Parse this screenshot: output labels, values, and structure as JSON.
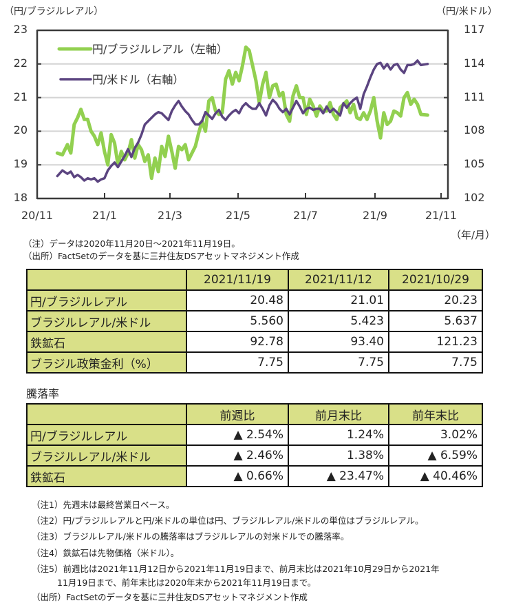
{
  "chart_data": {
    "type": "line",
    "left_axis_unit": "（円/ブラジルレアル）",
    "right_axis_unit": "（円/米ドル）",
    "x_unit": "（年/月）",
    "x_ticks": [
      "20/11",
      "21/1",
      "21/3",
      "21/5",
      "21/7",
      "21/9",
      "21/11"
    ],
    "y_left": {
      "range": [
        18,
        23
      ],
      "ticks": [
        "18",
        "19",
        "20",
        "21",
        "22",
        "23"
      ]
    },
    "y_right": {
      "range": [
        102,
        117
      ],
      "ticks": [
        "102",
        "105",
        "108",
        "111",
        "114",
        "117"
      ]
    },
    "grid": true,
    "legend": {
      "placement": "top-left",
      "entries": [
        "円/ブラジルレアル（左軸）",
        "円/米ドル（右軸）"
      ]
    },
    "x_domain_months": [
      0,
      12
    ],
    "series": [
      {
        "name": "円/ブラジルレアル（左軸）",
        "axis": "left",
        "color": "#92d050",
        "x": [
          0.6,
          0.75,
          0.9,
          1.0,
          1.1,
          1.2,
          1.3,
          1.4,
          1.5,
          1.6,
          1.7,
          1.8,
          1.9,
          2.0,
          2.1,
          2.2,
          2.3,
          2.4,
          2.5,
          2.6,
          2.7,
          2.8,
          2.9,
          3.0,
          3.1,
          3.2,
          3.3,
          3.4,
          3.5,
          3.6,
          3.7,
          3.8,
          3.9,
          4.0,
          4.1,
          4.2,
          4.3,
          4.4,
          4.5,
          4.6,
          4.7,
          4.8,
          4.9,
          5.0,
          5.1,
          5.2,
          5.3,
          5.4,
          5.5,
          5.6,
          5.7,
          5.8,
          5.9,
          6.0,
          6.1,
          6.2,
          6.3,
          6.4,
          6.5,
          6.6,
          6.7,
          6.8,
          6.9,
          7.0,
          7.1,
          7.2,
          7.3,
          7.4,
          7.5,
          7.6,
          7.7,
          7.8,
          7.9,
          8.0,
          8.1,
          8.2,
          8.3,
          8.4,
          8.5,
          8.6,
          8.7,
          8.8,
          8.9,
          9.0,
          9.1,
          9.2,
          9.3,
          9.4,
          9.5,
          9.6,
          9.7,
          9.8,
          9.9,
          10.0,
          10.1,
          10.2,
          10.3,
          10.4,
          10.5,
          10.6,
          10.7,
          10.8,
          10.9,
          11.0,
          11.1,
          11.2,
          11.3,
          11.4,
          11.6
        ],
        "values": [
          19.35,
          19.3,
          19.6,
          19.35,
          20.2,
          20.4,
          20.65,
          20.35,
          20.35,
          20.0,
          19.85,
          19.6,
          19.95,
          19.4,
          19.0,
          19.9,
          19.65,
          19.0,
          19.4,
          19.15,
          19.35,
          19.75,
          19.2,
          19.6,
          19.45,
          19.1,
          19.3,
          18.6,
          19.2,
          18.8,
          19.55,
          19.25,
          19.85,
          19.4,
          18.9,
          19.55,
          19.45,
          19.6,
          19.15,
          19.35,
          19.55,
          19.95,
          20.3,
          20.0,
          20.9,
          21.0,
          20.6,
          20.5,
          20.55,
          21.55,
          21.8,
          21.4,
          21.75,
          21.5,
          21.95,
          22.5,
          22.4,
          21.95,
          21.5,
          20.85,
          21.4,
          21.75,
          21.0,
          21.35,
          21.4,
          21.05,
          21.15,
          20.5,
          20.3,
          21.05,
          21.35,
          21.0,
          21.0,
          20.5,
          20.95,
          20.75,
          20.45,
          20.75,
          20.6,
          20.6,
          20.85,
          20.5,
          20.35,
          20.7,
          20.8,
          20.9,
          20.55,
          20.8,
          20.4,
          20.35,
          20.55,
          20.35,
          20.6,
          21.0,
          20.3,
          19.8,
          20.55,
          20.2,
          20.3,
          20.6,
          20.55,
          20.45,
          21.0,
          21.15,
          20.8,
          20.95,
          20.8,
          20.5,
          20.48
        ]
      },
      {
        "name": "円/米ドル（右軸）",
        "axis": "right",
        "color": "#5b4480",
        "x": [
          0.6,
          0.75,
          0.9,
          1.0,
          1.1,
          1.2,
          1.3,
          1.4,
          1.5,
          1.6,
          1.7,
          1.8,
          1.9,
          2.0,
          2.1,
          2.2,
          2.3,
          2.4,
          2.5,
          2.6,
          2.7,
          2.8,
          2.9,
          3.0,
          3.1,
          3.2,
          3.3,
          3.4,
          3.5,
          3.6,
          3.7,
          3.8,
          3.9,
          4.0,
          4.1,
          4.2,
          4.3,
          4.4,
          4.5,
          4.6,
          4.7,
          4.8,
          4.9,
          5.0,
          5.1,
          5.2,
          5.3,
          5.4,
          5.5,
          5.6,
          5.7,
          5.8,
          5.9,
          6.0,
          6.1,
          6.2,
          6.3,
          6.4,
          6.5,
          6.6,
          6.7,
          6.8,
          6.9,
          7.0,
          7.1,
          7.2,
          7.3,
          7.4,
          7.5,
          7.6,
          7.7,
          7.8,
          7.9,
          8.0,
          8.1,
          8.2,
          8.3,
          8.4,
          8.5,
          8.6,
          8.7,
          8.8,
          8.9,
          9.0,
          9.1,
          9.2,
          9.3,
          9.4,
          9.5,
          9.6,
          9.7,
          9.8,
          9.9,
          10.0,
          10.1,
          10.2,
          10.3,
          10.4,
          10.5,
          10.6,
          10.7,
          10.8,
          10.9,
          11.0,
          11.1,
          11.2,
          11.3,
          11.4,
          11.6
        ],
        "values": [
          104.0,
          104.5,
          104.2,
          104.4,
          103.9,
          104.1,
          103.9,
          103.6,
          103.8,
          103.7,
          103.8,
          103.5,
          103.7,
          103.8,
          104.5,
          104.9,
          105.2,
          104.8,
          105.3,
          105.8,
          106.4,
          105.7,
          106.5,
          107.0,
          107.7,
          108.6,
          108.9,
          109.2,
          109.5,
          109.7,
          109.6,
          109.3,
          109.0,
          109.8,
          110.3,
          110.7,
          110.2,
          109.8,
          109.5,
          109.0,
          108.6,
          108.6,
          108.9,
          109.7,
          109.4,
          109.1,
          109.6,
          109.9,
          109.3,
          109.0,
          109.4,
          109.7,
          109.9,
          109.6,
          110.2,
          110.5,
          110.2,
          110.0,
          110.0,
          110.5,
          110.0,
          109.4,
          110.3,
          110.8,
          110.5,
          110.0,
          109.7,
          110.0,
          109.5,
          110.1,
          110.7,
          110.2,
          109.6,
          110.0,
          110.1,
          109.9,
          110.0,
          110.0,
          109.6,
          110.2,
          109.7,
          110.0,
          109.7,
          109.4,
          110.5,
          110.1,
          110.5,
          110.8,
          111.0,
          110.0,
          111.3,
          112.0,
          112.8,
          113.5,
          114.0,
          114.1,
          113.6,
          114.0,
          113.5,
          113.9,
          114.0,
          113.5,
          113.2,
          113.9,
          113.9,
          114.0,
          114.3,
          113.9,
          114.0
        ]
      }
    ]
  },
  "chart_notes": [
    "（注）データは2020年11月20日～2021年11月19日。",
    "（出所）FactSetのデータを基に三井住友DSアセットマネジメント作成"
  ],
  "price_table": {
    "headers": [
      "",
      "2021/11/19",
      "2021/11/12",
      "2021/10/29"
    ],
    "rows": [
      {
        "label": "円/ブラジルレアル",
        "values": [
          "20.48",
          "21.01",
          "20.23"
        ]
      },
      {
        "label": "ブラジルレアル/米ドル",
        "values": [
          "5.560",
          "5.423",
          "5.637"
        ]
      },
      {
        "label": "鉄鉱石",
        "values": [
          "92.78",
          "93.40",
          "121.23"
        ]
      },
      {
        "label": "ブラジル政策金利（%）",
        "values": [
          "7.75",
          "7.75",
          "7.75"
        ]
      }
    ]
  },
  "change_section_title": "騰落率",
  "change_table": {
    "headers": [
      "",
      "前週比",
      "前月末比",
      "前年末比"
    ],
    "rows": [
      {
        "label": "円/ブラジルレアル",
        "values": [
          "▲ 2.54%",
          "1.24%",
          "3.02%"
        ]
      },
      {
        "label": "ブラジルレアル/米ドル",
        "values": [
          "▲ 2.46%",
          "1.38%",
          "▲ 6.59%"
        ]
      },
      {
        "label": "鉄鉱石",
        "values": [
          "▲ 0.66%",
          "▲ 23.47%",
          "▲ 40.46%"
        ]
      }
    ]
  },
  "footnotes": [
    "（注1）先週末は最終営業日ベース。",
    "（注2）円/ブラジルレアルと円/米ドルの単位は円、ブラジルレアル/米ドルの単位はブラジルレアル。",
    "（注3）ブラジルレアル/米ドルの騰落率はブラジルレアルの対米ドルでの騰落率。",
    "（注4）鉄鉱石は先物価格（米ドル）。",
    "（注5）前週比は2021年11月12日から2021年11月19日まで、前月末比は2021年10月29日から2021年",
    "11月19日まで、前年末比は2020年末から2021年11月19日まで。",
    "（出所）FactSetのデータを基に三井住友DSアセットマネジメント作成"
  ]
}
